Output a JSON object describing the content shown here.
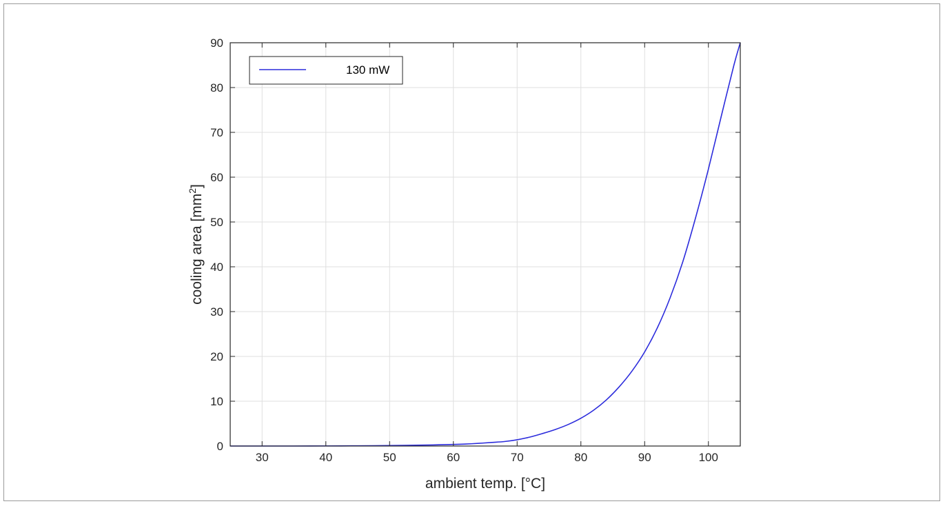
{
  "chart_data": {
    "type": "line",
    "title": "",
    "xlabel": "ambient temp. [°C]",
    "ylabel_main": "cooling area [mm",
    "ylabel_sup": "2",
    "ylabel_end": "]",
    "xlim": [
      25,
      105
    ],
    "ylim": [
      0,
      90
    ],
    "xticks": [
      30,
      40,
      50,
      60,
      70,
      80,
      90,
      100
    ],
    "yticks": [
      0,
      10,
      20,
      30,
      40,
      50,
      60,
      70,
      80,
      90
    ],
    "grid": true,
    "legend_position": "top-left",
    "series": [
      {
        "name": "130 mW",
        "color": "#2b2bdc",
        "x": [
          25,
          30,
          35,
          40,
          45,
          50,
          55,
          60,
          62,
          64,
          66,
          68,
          70,
          72,
          74,
          76,
          78,
          80,
          82,
          84,
          86,
          88,
          90,
          92,
          94,
          96,
          98,
          100,
          102,
          104,
          105
        ],
        "y": [
          0,
          0,
          0,
          0.02,
          0.05,
          0.1,
          0.2,
          0.35,
          0.45,
          0.6,
          0.8,
          1.0,
          1.4,
          2.0,
          2.8,
          3.7,
          4.8,
          6.2,
          8.0,
          10.3,
          13.2,
          16.7,
          21.0,
          26.4,
          33.1,
          41.2,
          51.0,
          61.8,
          73.5,
          85.0,
          90.0
        ]
      }
    ]
  }
}
